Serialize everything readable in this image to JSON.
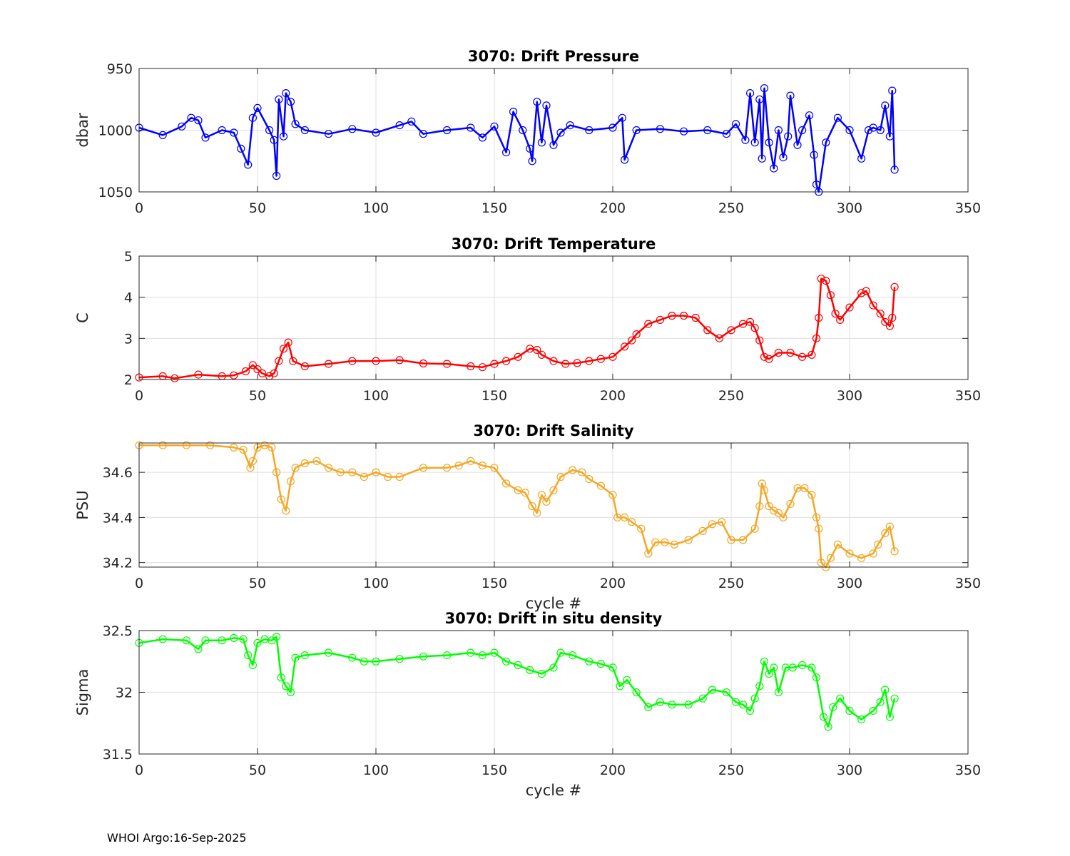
{
  "footer": "WHOI Argo:16-Sep-2025",
  "chart_data": [
    {
      "type": "line",
      "title": "3070: Drift Pressure",
      "xlabel": "",
      "ylabel": "dbar",
      "xlim": [
        0,
        350
      ],
      "ylim": [
        950,
        1050
      ],
      "y_reversed": true,
      "xticks": [
        0,
        50,
        100,
        150,
        200,
        250,
        300,
        350
      ],
      "yticks": [
        950,
        1000,
        1050
      ],
      "ytick_labels": [
        "950",
        "1000",
        "1050"
      ],
      "color": "#0000ff",
      "marker": "circle",
      "series": [
        {
          "name": "pressure",
          "x": [
            0,
            10,
            18,
            22,
            25,
            28,
            35,
            40,
            43,
            46,
            48,
            50,
            55,
            57,
            58,
            59,
            61,
            62,
            64,
            66,
            70,
            80,
            90,
            100,
            110,
            115,
            120,
            130,
            140,
            145,
            150,
            155,
            158,
            162,
            165,
            166,
            168,
            170,
            172,
            175,
            178,
            182,
            190,
            200,
            204,
            205,
            210,
            220,
            230,
            240,
            248,
            252,
            256,
            258,
            260,
            262,
            263,
            264,
            266,
            268,
            270,
            272,
            274,
            275,
            278,
            280,
            283,
            285,
            286,
            287,
            290,
            295,
            300,
            305,
            308,
            310,
            313,
            315,
            317,
            318,
            319
          ],
          "y": [
            998,
            1004,
            997,
            990,
            992,
            1006,
            1000,
            1002,
            1015,
            1028,
            990,
            982,
            1000,
            1008,
            1037,
            975,
            1005,
            970,
            977,
            995,
            1000,
            1003,
            999,
            1002,
            996,
            993,
            1003,
            1000,
            998,
            1006,
            997,
            1018,
            985,
            1000,
            1015,
            1025,
            977,
            1010,
            980,
            1012,
            1002,
            996,
            1000,
            998,
            990,
            1024,
            1000,
            999,
            1001,
            1000,
            1003,
            995,
            1008,
            970,
            1010,
            975,
            1023,
            966,
            1010,
            1031,
            1000,
            1022,
            1005,
            972,
            1012,
            1000,
            988,
            1020,
            1044,
            1050,
            1010,
            990,
            1000,
            1023,
            1000,
            998,
            1000,
            980,
            1005,
            968,
            1032
          ]
        }
      ]
    },
    {
      "type": "line",
      "title": "3070: Drift Temperature",
      "xlabel": "",
      "ylabel": "C",
      "xlim": [
        0,
        350
      ],
      "ylim": [
        2,
        5
      ],
      "xticks": [
        0,
        50,
        100,
        150,
        200,
        250,
        300,
        350
      ],
      "yticks": [
        2,
        3,
        4,
        5
      ],
      "ytick_labels": [
        "2",
        "3",
        "4",
        "5"
      ],
      "color": "#ff0000",
      "marker": "circle",
      "series": [
        {
          "name": "temperature",
          "x": [
            0,
            10,
            15,
            25,
            35,
            40,
            45,
            48,
            50,
            52,
            55,
            57,
            59,
            61,
            63,
            65,
            70,
            80,
            90,
            100,
            110,
            120,
            130,
            140,
            145,
            150,
            155,
            160,
            165,
            168,
            170,
            175,
            180,
            185,
            190,
            195,
            200,
            205,
            208,
            210,
            215,
            220,
            225,
            230,
            235,
            240,
            245,
            250,
            255,
            258,
            260,
            262,
            264,
            266,
            270,
            275,
            280,
            284,
            286,
            287,
            288,
            290,
            292,
            294,
            296,
            300,
            305,
            307,
            310,
            313,
            315,
            317,
            318,
            319
          ],
          "y": [
            2.05,
            2.08,
            2.03,
            2.12,
            2.08,
            2.1,
            2.2,
            2.35,
            2.25,
            2.15,
            2.08,
            2.15,
            2.45,
            2.75,
            2.9,
            2.45,
            2.32,
            2.38,
            2.45,
            2.45,
            2.47,
            2.39,
            2.38,
            2.32,
            2.3,
            2.38,
            2.45,
            2.55,
            2.75,
            2.72,
            2.6,
            2.45,
            2.38,
            2.4,
            2.45,
            2.5,
            2.55,
            2.8,
            2.95,
            3.1,
            3.35,
            3.45,
            3.55,
            3.55,
            3.5,
            3.2,
            3.0,
            3.2,
            3.35,
            3.4,
            3.25,
            2.95,
            2.55,
            2.5,
            2.65,
            2.65,
            2.55,
            2.6,
            3.0,
            3.5,
            4.45,
            4.4,
            4.05,
            3.6,
            3.45,
            3.75,
            4.1,
            4.15,
            3.8,
            3.6,
            3.4,
            3.3,
            3.5,
            4.25
          ]
        }
      ]
    },
    {
      "type": "line",
      "title": "3070: Drift Salinity",
      "xlabel": "cycle #",
      "ylabel": "PSU",
      "xlim": [
        0,
        350
      ],
      "ylim": [
        34.18,
        34.73
      ],
      "xticks": [
        0,
        50,
        100,
        150,
        200,
        250,
        300,
        350
      ],
      "yticks": [
        34.2,
        34.4,
        34.6
      ],
      "ytick_labels": [
        "34.2",
        "34.4",
        "34.6"
      ],
      "color": "#f5a623",
      "marker": "circle",
      "series": [
        {
          "name": "salinity",
          "x": [
            0,
            10,
            20,
            30,
            40,
            44,
            47,
            48,
            50,
            53,
            56,
            58,
            60,
            62,
            64,
            66,
            70,
            75,
            80,
            85,
            90,
            95,
            100,
            105,
            110,
            120,
            130,
            135,
            140,
            145,
            150,
            155,
            160,
            163,
            166,
            168,
            170,
            172,
            175,
            178,
            183,
            187,
            190,
            195,
            200,
            202,
            205,
            208,
            212,
            215,
            218,
            222,
            226,
            232,
            238,
            242,
            246,
            250,
            255,
            260,
            262,
            263,
            264,
            266,
            268,
            270,
            272,
            275,
            278,
            281,
            284,
            286,
            287,
            288,
            290,
            292,
            295,
            300,
            305,
            310,
            312,
            315,
            317,
            319
          ],
          "y": [
            34.72,
            34.72,
            34.72,
            34.72,
            34.71,
            34.7,
            34.62,
            34.65,
            34.71,
            34.72,
            34.71,
            34.6,
            34.48,
            34.43,
            34.56,
            34.62,
            34.64,
            34.65,
            34.62,
            34.6,
            34.6,
            34.58,
            34.6,
            34.58,
            34.58,
            34.62,
            34.62,
            34.63,
            34.65,
            34.63,
            34.62,
            34.55,
            34.52,
            34.51,
            34.45,
            34.42,
            34.5,
            34.47,
            34.52,
            34.58,
            34.61,
            34.6,
            34.57,
            34.54,
            34.5,
            34.4,
            34.4,
            34.38,
            34.35,
            34.24,
            34.29,
            34.29,
            34.28,
            34.3,
            34.34,
            34.37,
            34.38,
            34.3,
            34.3,
            34.35,
            34.45,
            34.55,
            34.52,
            34.45,
            34.43,
            34.42,
            34.4,
            34.46,
            34.53,
            34.53,
            34.5,
            34.4,
            34.35,
            34.2,
            34.18,
            34.22,
            34.28,
            34.24,
            34.22,
            34.24,
            34.28,
            34.33,
            34.36,
            34.25
          ]
        }
      ]
    },
    {
      "type": "line",
      "title": "3070: Drift in situ density",
      "xlabel": "cycle #",
      "ylabel": "Sigma",
      "xlim": [
        0,
        350
      ],
      "ylim": [
        31.5,
        32.5
      ],
      "xticks": [
        0,
        50,
        100,
        150,
        200,
        250,
        300,
        350
      ],
      "yticks": [
        31.5,
        32,
        32.5
      ],
      "ytick_labels": [
        "31.5",
        "32",
        "32.5"
      ],
      "color": "#00ff00",
      "marker": "circle",
      "series": [
        {
          "name": "density",
          "x": [
            0,
            10,
            20,
            25,
            28,
            35,
            40,
            44,
            46,
            48,
            50,
            53,
            56,
            58,
            60,
            62,
            64,
            66,
            70,
            80,
            90,
            95,
            100,
            110,
            120,
            130,
            140,
            145,
            150,
            155,
            160,
            165,
            170,
            175,
            178,
            183,
            190,
            195,
            200,
            203,
            206,
            210,
            215,
            220,
            225,
            232,
            238,
            242,
            248,
            252,
            255,
            258,
            260,
            262,
            264,
            266,
            268,
            270,
            273,
            276,
            280,
            284,
            286,
            289,
            291,
            293,
            296,
            300,
            305,
            310,
            313,
            315,
            317,
            319
          ],
          "y": [
            32.4,
            32.43,
            32.42,
            32.35,
            32.42,
            32.42,
            32.44,
            32.43,
            32.3,
            32.22,
            32.4,
            32.43,
            32.42,
            32.45,
            32.12,
            32.05,
            32.0,
            32.28,
            32.3,
            32.32,
            32.28,
            32.25,
            32.25,
            32.27,
            32.29,
            32.3,
            32.32,
            32.3,
            32.32,
            32.25,
            32.22,
            32.18,
            32.15,
            32.2,
            32.32,
            32.3,
            32.25,
            32.23,
            32.2,
            32.05,
            32.1,
            32.0,
            31.88,
            31.92,
            31.9,
            31.9,
            31.95,
            32.02,
            32.0,
            31.92,
            31.9,
            31.85,
            31.95,
            32.05,
            32.25,
            32.15,
            32.2,
            32.0,
            32.2,
            32.2,
            32.22,
            32.2,
            32.12,
            31.8,
            31.72,
            31.88,
            31.95,
            31.85,
            31.78,
            31.85,
            31.92,
            32.02,
            31.8,
            31.95
          ]
        }
      ]
    }
  ]
}
